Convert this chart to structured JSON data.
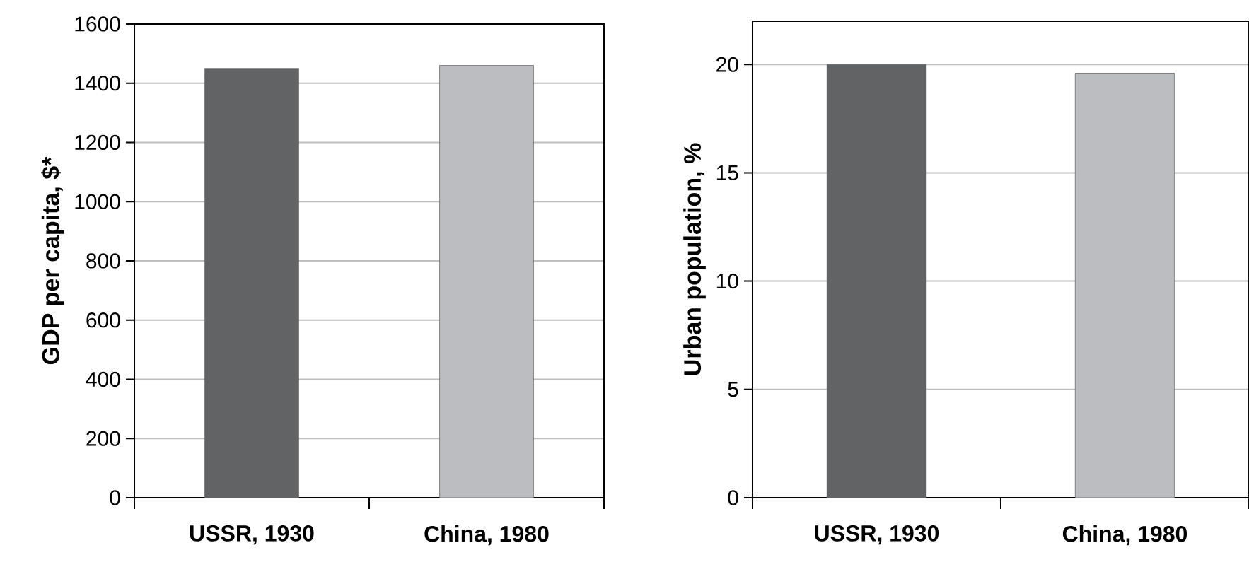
{
  "chart_data": [
    {
      "type": "bar",
      "categories": [
        "USSR, 1930",
        "China, 1980"
      ],
      "values": [
        1450,
        1460
      ],
      "colors": [
        "#626365",
        "#bcbdc0"
      ],
      "ylabel": "GDP per capita, $*",
      "ylim": [
        0,
        1600
      ],
      "yticks": [
        0,
        200,
        400,
        600,
        800,
        1000,
        1200,
        1400,
        1600
      ],
      "grid": "y"
    },
    {
      "type": "bar",
      "categories": [
        "USSR, 1930",
        "China, 1980"
      ],
      "values": [
        20,
        19.6
      ],
      "colors": [
        "#626365",
        "#bcbdc0"
      ],
      "ylabel": "Urban population, %",
      "ylim": [
        0,
        22
      ],
      "yticks": [
        0,
        5,
        10,
        15,
        20
      ],
      "grid": "y"
    }
  ]
}
